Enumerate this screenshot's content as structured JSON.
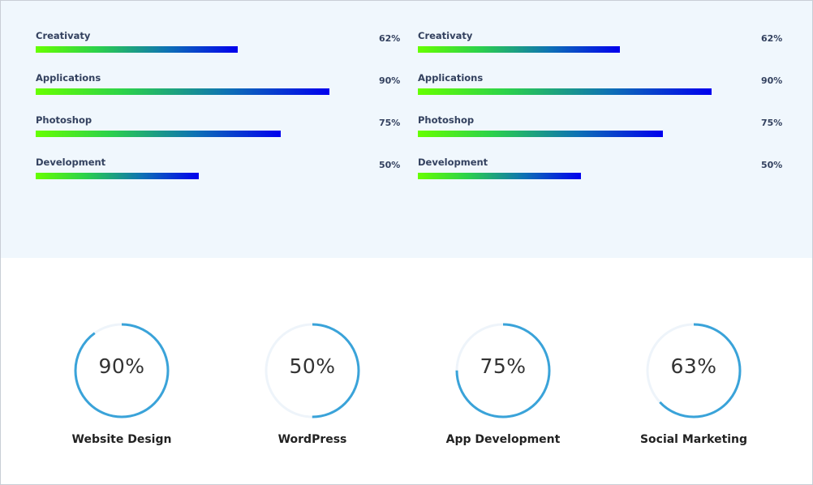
{
  "skills": {
    "left": [
      {
        "label": "Creativaty",
        "percent_text": "62%",
        "value": 62
      },
      {
        "label": "Applications",
        "percent_text": "90%",
        "value": 90
      },
      {
        "label": "Photoshop",
        "percent_text": "75%",
        "value": 75
      },
      {
        "label": "Development",
        "percent_text": "50%",
        "value": 50
      }
    ],
    "right": [
      {
        "label": "Creativaty",
        "percent_text": "62%",
        "value": 62
      },
      {
        "label": "Applications",
        "percent_text": "90%",
        "value": 90
      },
      {
        "label": "Photoshop",
        "percent_text": "75%",
        "value": 75
      },
      {
        "label": "Development",
        "percent_text": "50%",
        "value": 50
      }
    ]
  },
  "circles": [
    {
      "value_text": "90%",
      "value": 90,
      "label": "Website Design"
    },
    {
      "value_text": "50%",
      "value": 50,
      "label": "WordPress"
    },
    {
      "value_text": "75%",
      "value": 75,
      "label": "App Development"
    },
    {
      "value_text": "63%",
      "value": 63,
      "label": "Social Marketing"
    }
  ],
  "colors": {
    "section_bg": "#f0f7fd",
    "bar_gradient_start": "#66ff00",
    "bar_gradient_end": "#0000ee",
    "ring_color": "#3aa3d9",
    "ring_track": "#eef4fa",
    "text_dark": "#33415f"
  }
}
